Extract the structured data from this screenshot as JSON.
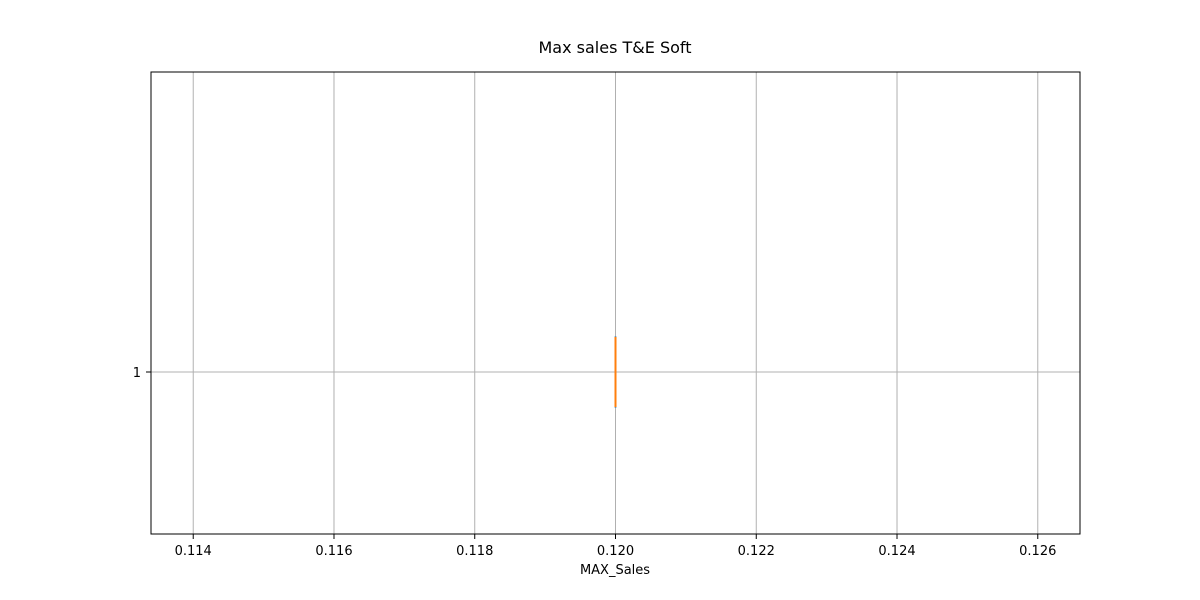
{
  "chart_data": {
    "type": "box",
    "orientation": "horizontal",
    "title": "Max sales T&E Soft",
    "xlabel": "MAX_Sales",
    "ylabel": "",
    "xlim": [
      0.1134,
      0.1266
    ],
    "xticks": [
      "0.114",
      "0.116",
      "0.118",
      "0.120",
      "0.122",
      "0.124",
      "0.126"
    ],
    "xtick_values": [
      0.114,
      0.116,
      0.118,
      0.12,
      0.122,
      0.124,
      0.126
    ],
    "yticks": [
      "1"
    ],
    "grid": true,
    "boxes": [
      {
        "category": "1",
        "min": 0.12,
        "q1": 0.12,
        "median": 0.12,
        "q3": 0.12,
        "max": 0.12
      }
    ],
    "colors": {
      "box": "#1f77b4",
      "median": "#ff7f0e",
      "grid": "#b0b0b0"
    }
  }
}
